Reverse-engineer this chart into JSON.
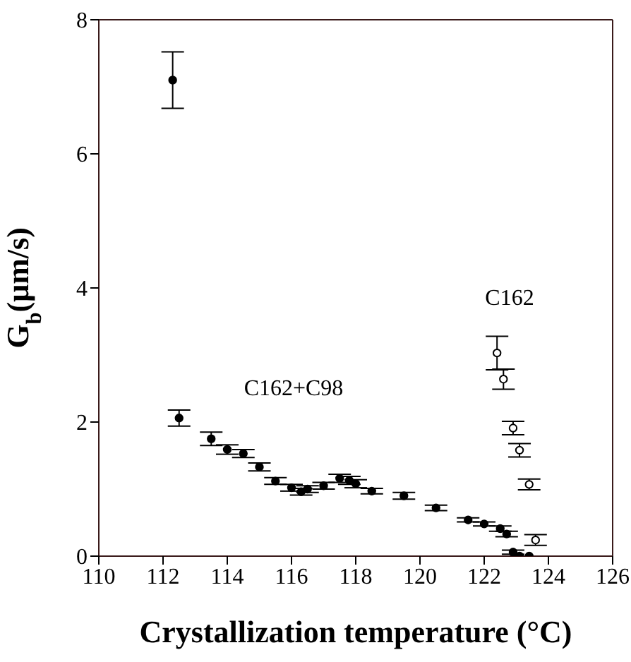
{
  "chart_data": {
    "type": "scatter",
    "xlabel": "Crystallization temperature  (°C)",
    "ylabel": "G$_{b}$(μm/s)",
    "xlim": [
      110,
      126
    ],
    "xticks": [
      110,
      112,
      114,
      116,
      118,
      120,
      122,
      124,
      126
    ],
    "ylim": [
      0,
      8
    ],
    "yticks": [
      0,
      2,
      4,
      6,
      8
    ],
    "grid": false,
    "legend": false,
    "marker": "circle",
    "series": [
      {
        "color": "#000000",
        "x": [
          112.3,
          112.5,
          113.5,
          114.0,
          114.5,
          115.0,
          115.5,
          116.0,
          116.3,
          116.5,
          117.0,
          117.5,
          117.8,
          118.0,
          118.5,
          119.5,
          120.5,
          121.5,
          122.0,
          122.5,
          122.7,
          122.9,
          123.1,
          123.4
        ],
        "values": [
          7.1,
          2.06,
          1.75,
          1.59,
          1.53,
          1.33,
          1.12,
          1.02,
          0.96,
          1.0,
          1.05,
          1.16,
          1.13,
          1.08,
          0.97,
          0.9,
          0.72,
          0.54,
          0.48,
          0.41,
          0.33,
          0.06,
          0.0,
          0.0
        ],
        "errors": [
          0.42,
          0.12,
          0.1,
          0.07,
          0.06,
          0.06,
          0.05,
          0.05,
          0.05,
          0.05,
          0.05,
          0.06,
          0.06,
          0.06,
          0.04,
          0.05,
          0.04,
          0.03,
          0.03,
          0.04,
          0.04,
          0.03,
          null,
          null
        ]
      },
      {
        "color": "#000000",
        "x": [
          122.4,
          122.6,
          122.9,
          123.1,
          123.4,
          123.6
        ],
        "values": [
          3.03,
          2.64,
          1.91,
          1.58,
          1.07,
          0.24
        ],
        "errors": [
          0.25,
          0.15,
          0.1,
          0.1,
          0.08,
          0.08
        ]
      }
    ],
    "annotations": [
      "C162+C98",
      "C162"
    ]
  }
}
